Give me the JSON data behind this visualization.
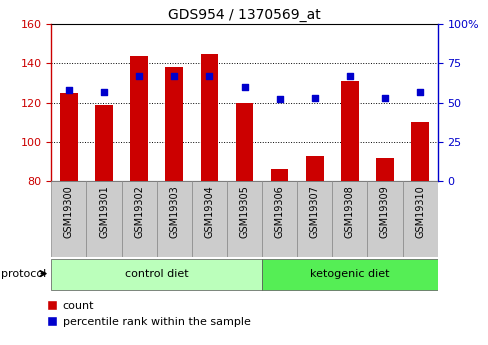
{
  "title": "GDS954 / 1370569_at",
  "samples": [
    "GSM19300",
    "GSM19301",
    "GSM19302",
    "GSM19303",
    "GSM19304",
    "GSM19305",
    "GSM19306",
    "GSM19307",
    "GSM19308",
    "GSM19309",
    "GSM19310"
  ],
  "counts": [
    125,
    119,
    144,
    138,
    145,
    120,
    86,
    93,
    131,
    92,
    110
  ],
  "percentiles": [
    58,
    57,
    67,
    67,
    67,
    60,
    52,
    53,
    67,
    53,
    57
  ],
  "ylim_left": [
    80,
    160
  ],
  "ylim_right": [
    0,
    100
  ],
  "yticks_left": [
    80,
    100,
    120,
    140,
    160
  ],
  "yticks_right": [
    0,
    25,
    50,
    75,
    100
  ],
  "ytick_labels_right": [
    "0",
    "25",
    "50",
    "75",
    "100%"
  ],
  "bar_color": "#cc0000",
  "dot_color": "#0000cc",
  "bar_bottom": 80,
  "groups": [
    {
      "label": "control diet",
      "indices": [
        0,
        1,
        2,
        3,
        4,
        5
      ],
      "color": "#bbffbb"
    },
    {
      "label": "ketogenic diet",
      "indices": [
        6,
        7,
        8,
        9,
        10
      ],
      "color": "#55ee55"
    }
  ],
  "protocol_label": "protocol",
  "legend_count_label": "count",
  "legend_pct_label": "percentile rank within the sample",
  "tick_label_color_left": "#cc0000",
  "tick_label_color_right": "#0000cc",
  "background_color": "#ffffff",
  "plot_bg_color": "#ffffff",
  "xtick_bg_color": "#cccccc",
  "grid_color": "#000000",
  "bar_width": 0.5,
  "figsize": [
    4.89,
    3.45
  ],
  "dpi": 100
}
